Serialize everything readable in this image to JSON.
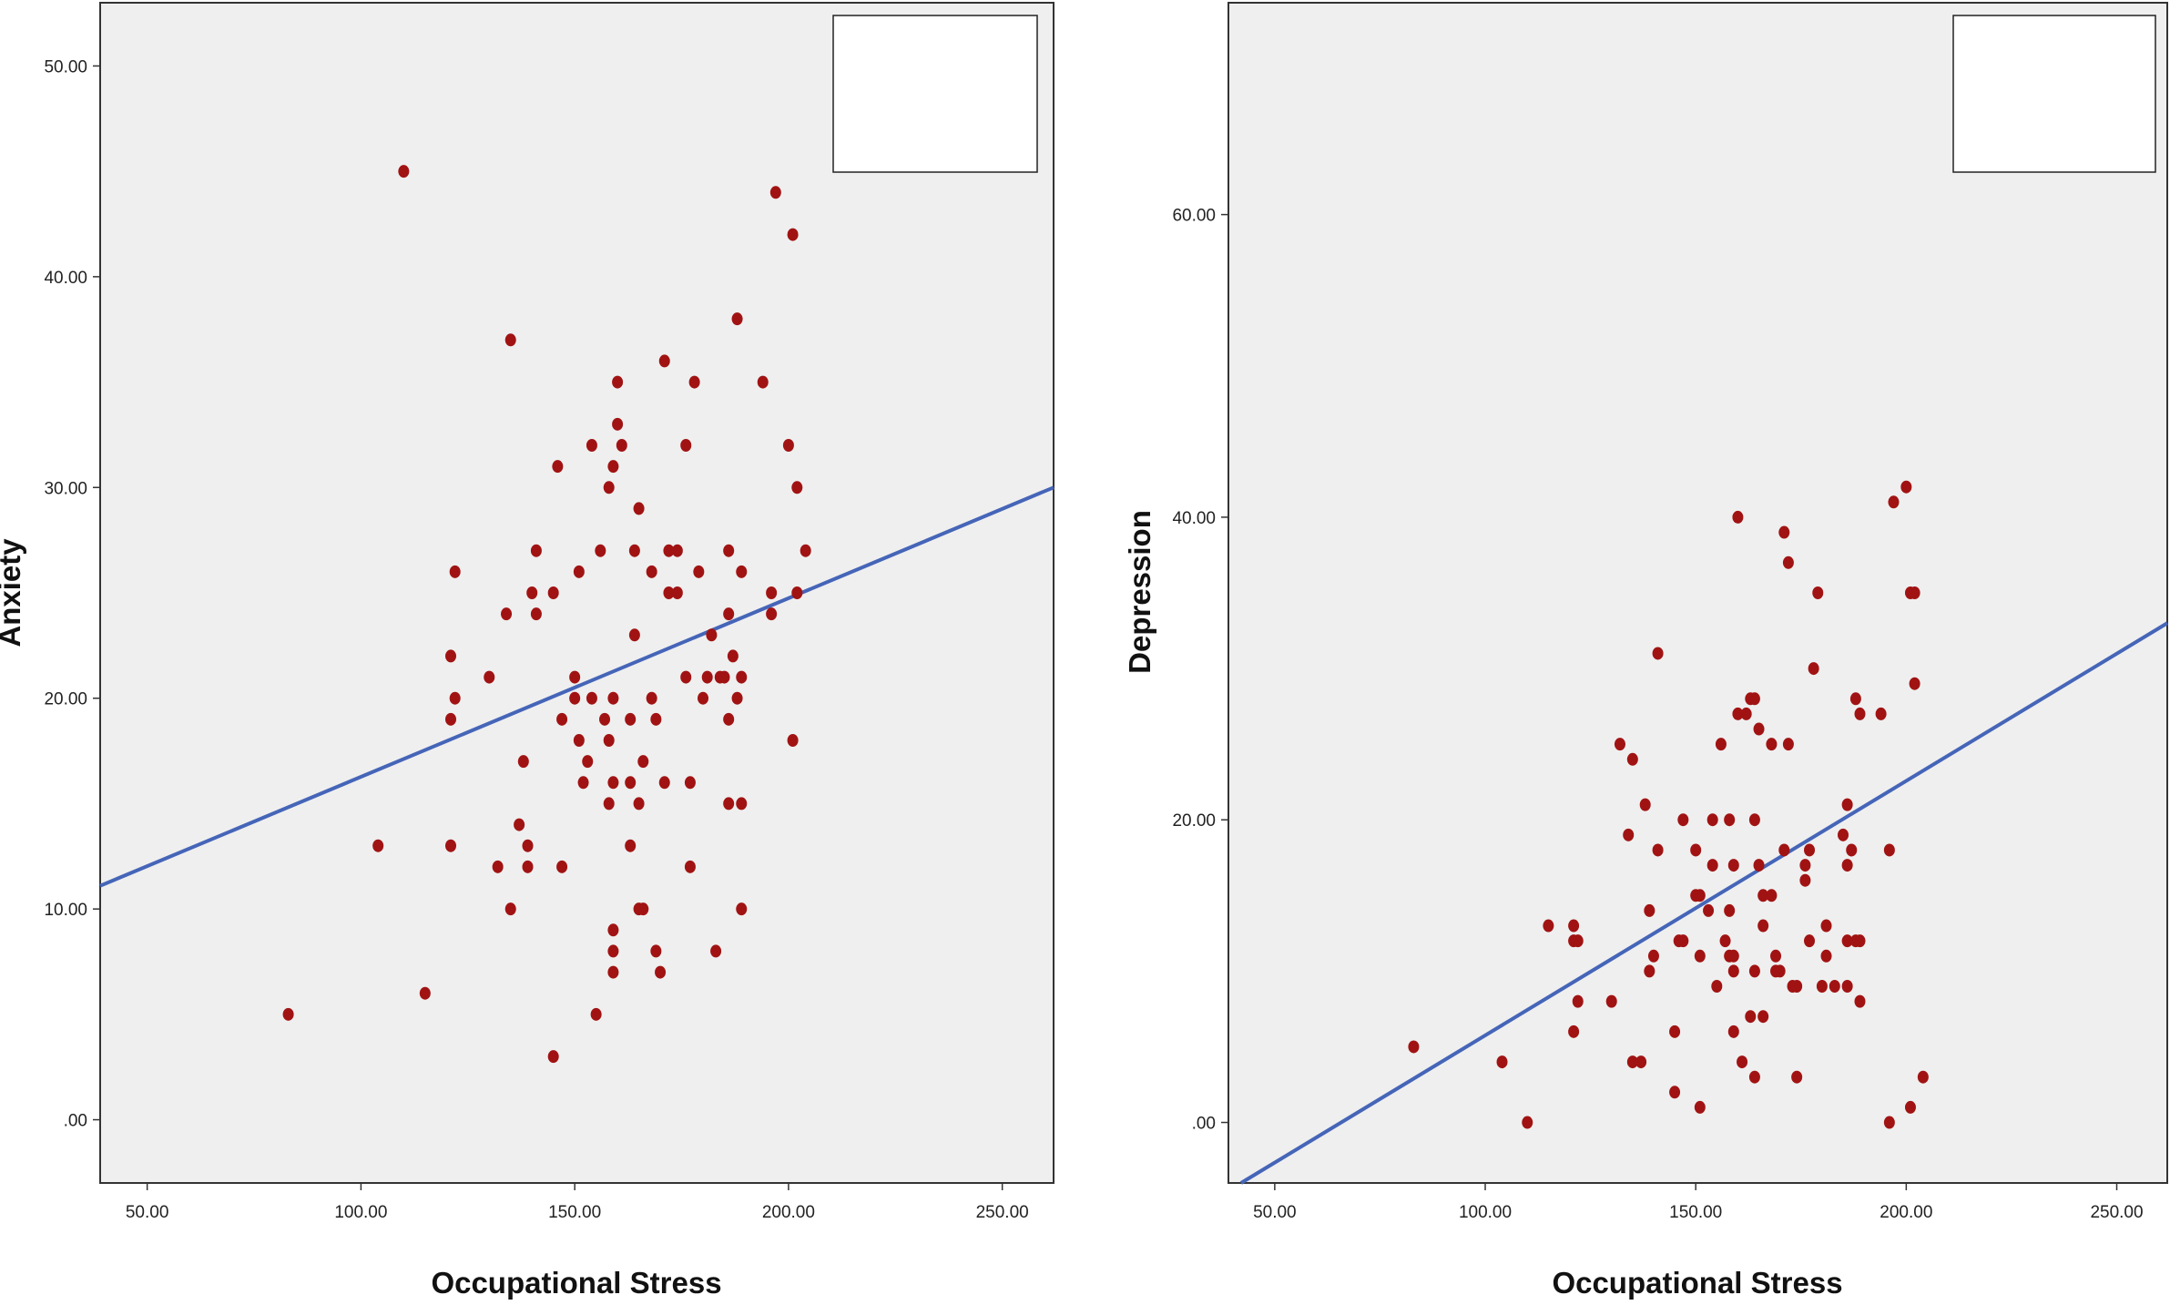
{
  "colors": {
    "plot_background": "#efefef",
    "point": "#a11313",
    "fit_line": "#4565b8",
    "axis": "#333333"
  },
  "chart_data": [
    {
      "type": "scatter",
      "title": "",
      "xlabel": "Occupational Stress",
      "ylabel": "Anxiety",
      "xlim": [
        39,
        262
      ],
      "ylim": [
        -3,
        53
      ],
      "xticks": [
        50,
        100,
        150,
        200,
        250
      ],
      "yticks": [
        0,
        10,
        20,
        30,
        40,
        50
      ],
      "xtick_labels": [
        "50.00",
        "100.00",
        "150.00",
        "200.00",
        "250.00"
      ],
      "ytick_labels": [
        ".00",
        "10.00",
        "20.00",
        "30.00",
        "40.00",
        "50.00"
      ],
      "grid": false,
      "legend": "top-right (empty box)",
      "fit_line": [
        [
          39,
          11.1
        ],
        [
          262,
          30.0
        ]
      ],
      "points": [
        [
          83,
          5
        ],
        [
          104,
          13
        ],
        [
          110,
          45
        ],
        [
          115,
          6
        ],
        [
          121,
          22
        ],
        [
          121,
          19
        ],
        [
          121,
          13
        ],
        [
          122,
          26
        ],
        [
          122,
          20
        ],
        [
          130,
          21
        ],
        [
          132,
          12
        ],
        [
          134,
          24
        ],
        [
          135,
          37
        ],
        [
          135,
          10
        ],
        [
          137,
          14
        ],
        [
          138,
          17
        ],
        [
          139,
          13
        ],
        [
          139,
          12
        ],
        [
          140,
          25
        ],
        [
          141,
          27
        ],
        [
          141,
          24
        ],
        [
          145,
          25
        ],
        [
          145,
          3
        ],
        [
          146,
          31
        ],
        [
          147,
          19
        ],
        [
          147,
          12
        ],
        [
          150,
          21
        ],
        [
          150,
          20
        ],
        [
          151,
          26
        ],
        [
          151,
          18
        ],
        [
          152,
          16
        ],
        [
          153,
          17
        ],
        [
          154,
          32
        ],
        [
          154,
          20
        ],
        [
          155,
          5
        ],
        [
          156,
          27
        ],
        [
          157,
          19
        ],
        [
          158,
          30
        ],
        [
          158,
          18
        ],
        [
          158,
          15
        ],
        [
          159,
          31
        ],
        [
          159,
          20
        ],
        [
          159,
          16
        ],
        [
          159,
          9
        ],
        [
          159,
          8
        ],
        [
          159,
          7
        ],
        [
          160,
          33
        ],
        [
          160,
          35
        ],
        [
          161,
          32
        ],
        [
          163,
          19
        ],
        [
          163,
          16
        ],
        [
          163,
          13
        ],
        [
          164,
          27
        ],
        [
          164,
          23
        ],
        [
          165,
          29
        ],
        [
          165,
          15
        ],
        [
          165,
          10
        ],
        [
          166,
          17
        ],
        [
          166,
          10
        ],
        [
          168,
          26
        ],
        [
          168,
          20
        ],
        [
          169,
          19
        ],
        [
          169,
          8
        ],
        [
          170,
          7
        ],
        [
          171,
          36
        ],
        [
          171,
          16
        ],
        [
          172,
          27
        ],
        [
          172,
          25
        ],
        [
          174,
          27
        ],
        [
          174,
          25
        ],
        [
          176,
          32
        ],
        [
          176,
          21
        ],
        [
          177,
          16
        ],
        [
          177,
          12
        ],
        [
          178,
          35
        ],
        [
          179,
          26
        ],
        [
          180,
          20
        ],
        [
          181,
          21
        ],
        [
          182,
          23
        ],
        [
          183,
          8
        ],
        [
          184,
          21
        ],
        [
          185,
          21
        ],
        [
          186,
          27
        ],
        [
          186,
          24
        ],
        [
          186,
          19
        ],
        [
          186,
          15
        ],
        [
          187,
          22
        ],
        [
          188,
          38
        ],
        [
          188,
          20
        ],
        [
          189,
          26
        ],
        [
          189,
          21
        ],
        [
          189,
          15
        ],
        [
          189,
          10
        ],
        [
          194,
          35
        ],
        [
          196,
          25
        ],
        [
          196,
          24
        ],
        [
          197,
          44
        ],
        [
          200,
          32
        ],
        [
          201,
          42
        ],
        [
          201,
          18
        ],
        [
          202,
          30
        ],
        [
          202,
          25
        ],
        [
          204,
          27
        ]
      ]
    },
    {
      "type": "scatter",
      "title": "",
      "xlabel": "Occupational Stress",
      "ylabel": "Depression",
      "xlim": [
        39,
        262
      ],
      "ylim": [
        -4,
        74
      ],
      "xticks": [
        50,
        100,
        150,
        200,
        250
      ],
      "yticks": [
        0,
        20,
        40,
        60
      ],
      "xtick_labels": [
        "50.00",
        "100.00",
        "150.00",
        "200.00",
        "250.00"
      ],
      "ytick_labels": [
        ".00",
        "20.00",
        "40.00",
        "60.00"
      ],
      "grid": false,
      "legend": "top-right (empty box)",
      "fit_line": [
        [
          42,
          -4
        ],
        [
          262,
          33
        ]
      ],
      "points": [
        [
          83,
          5
        ],
        [
          104,
          4
        ],
        [
          110,
          0
        ],
        [
          115,
          13
        ],
        [
          121,
          13
        ],
        [
          121,
          12
        ],
        [
          121,
          6
        ],
        [
          122,
          12
        ],
        [
          122,
          8
        ],
        [
          130,
          8
        ],
        [
          132,
          25
        ],
        [
          134,
          19
        ],
        [
          135,
          24
        ],
        [
          135,
          4
        ],
        [
          137,
          4
        ],
        [
          138,
          21
        ],
        [
          139,
          14
        ],
        [
          139,
          10
        ],
        [
          140,
          11
        ],
        [
          141,
          31
        ],
        [
          141,
          18
        ],
        [
          145,
          6
        ],
        [
          145,
          2
        ],
        [
          146,
          12
        ],
        [
          147,
          20
        ],
        [
          147,
          12
        ],
        [
          150,
          18
        ],
        [
          150,
          15
        ],
        [
          151,
          15
        ],
        [
          151,
          11
        ],
        [
          151,
          1
        ],
        [
          153,
          14
        ],
        [
          154,
          20
        ],
        [
          154,
          17
        ],
        [
          155,
          9
        ],
        [
          156,
          25
        ],
        [
          157,
          12
        ],
        [
          158,
          20
        ],
        [
          158,
          14
        ],
        [
          158,
          11
        ],
        [
          159,
          17
        ],
        [
          159,
          11
        ],
        [
          159,
          10
        ],
        [
          159,
          6
        ],
        [
          160,
          40
        ],
        [
          160,
          27
        ],
        [
          161,
          4
        ],
        [
          162,
          27
        ],
        [
          163,
          28
        ],
        [
          163,
          7
        ],
        [
          164,
          28
        ],
        [
          164,
          20
        ],
        [
          164,
          10
        ],
        [
          164,
          3
        ],
        [
          165,
          26
        ],
        [
          165,
          17
        ],
        [
          166,
          15
        ],
        [
          166,
          13
        ],
        [
          166,
          7
        ],
        [
          168,
          25
        ],
        [
          168,
          15
        ],
        [
          169,
          11
        ],
        [
          169,
          10
        ],
        [
          170,
          10
        ],
        [
          171,
          39
        ],
        [
          171,
          18
        ],
        [
          172,
          37
        ],
        [
          172,
          25
        ],
        [
          173,
          9
        ],
        [
          174,
          9
        ],
        [
          174,
          3
        ],
        [
          176,
          17
        ],
        [
          176,
          16
        ],
        [
          177,
          18
        ],
        [
          177,
          12
        ],
        [
          178,
          30
        ],
        [
          179,
          35
        ],
        [
          180,
          9
        ],
        [
          181,
          13
        ],
        [
          181,
          11
        ],
        [
          183,
          9
        ],
        [
          185,
          19
        ],
        [
          186,
          21
        ],
        [
          186,
          17
        ],
        [
          186,
          12
        ],
        [
          186,
          9
        ],
        [
          187,
          18
        ],
        [
          188,
          28
        ],
        [
          188,
          12
        ],
        [
          189,
          27
        ],
        [
          189,
          12
        ],
        [
          189,
          8
        ],
        [
          194,
          27
        ],
        [
          196,
          18
        ],
        [
          196,
          0
        ],
        [
          197,
          41
        ],
        [
          200,
          42
        ],
        [
          201,
          35
        ],
        [
          201,
          1
        ],
        [
          202,
          35
        ],
        [
          202,
          29
        ],
        [
          204,
          3
        ]
      ]
    }
  ]
}
